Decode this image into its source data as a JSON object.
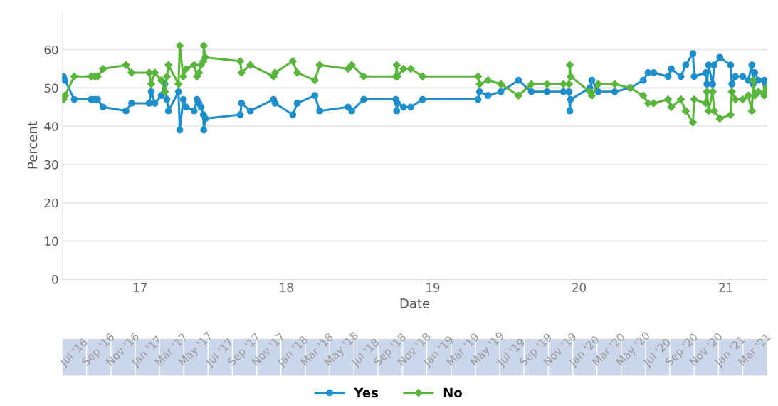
{
  "chart_data": [
    {
      "type": "line",
      "xlabel": "Date",
      "ylabel": "Percent",
      "xlim": [
        "2016-06-21",
        "2021-04-14"
      ],
      "ylim": [
        0,
        70
      ],
      "yticks": [
        0,
        10,
        20,
        30,
        40,
        50,
        60
      ],
      "xticks": [
        {
          "value": "2017-01-01",
          "label": "17"
        },
        {
          "value": "2018-01-01",
          "label": "18"
        },
        {
          "value": "2019-01-01",
          "label": "19"
        },
        {
          "value": "2020-01-01",
          "label": "20"
        },
        {
          "value": "2021-01-01",
          "label": "21"
        }
      ],
      "grid": "y",
      "legend": "bottom",
      "line_style": "solid",
      "x": [
        "2016-06-24",
        "2016-06-28",
        "2016-07-21",
        "2016-09-01",
        "2016-09-10",
        "2016-09-17",
        "2016-10-01",
        "2016-11-27",
        "2016-12-11",
        "2017-01-24",
        "2017-01-29",
        "2017-02-07",
        "2017-02-23",
        "2017-03-04",
        "2017-03-09",
        "2017-03-13",
        "2017-04-07",
        "2017-04-10",
        "2017-04-19",
        "2017-04-26",
        "2017-05-16",
        "2017-05-23",
        "2017-05-28",
        "2017-06-02",
        "2017-06-08",
        "2017-06-09",
        "2017-06-13",
        "2017-09-08",
        "2017-09-11",
        "2017-10-03",
        "2017-11-30",
        "2017-12-04",
        "2018-01-17",
        "2018-01-28",
        "2018-03-13",
        "2018-03-25",
        "2018-06-04",
        "2018-06-13",
        "2018-07-13",
        "2018-10-01",
        "2018-10-03",
        "2018-10-05",
        "2018-10-20",
        "2018-11-07",
        "2018-12-07",
        "2019-04-24",
        "2019-04-28",
        "2019-05-19",
        "2019-06-20",
        "2019-08-03",
        "2019-09-04",
        "2019-10-13",
        "2019-11-23",
        "2019-12-07",
        "2019-12-09",
        "2019-12-11",
        "2020-01-28",
        "2020-02-02",
        "2020-02-18",
        "2020-03-30",
        "2020-05-08",
        "2020-06-09",
        "2020-06-21",
        "2020-07-05",
        "2020-08-10",
        "2020-08-18",
        "2020-09-11",
        "2020-09-23",
        "2020-10-11",
        "2020-10-14",
        "2020-11-12",
        "2020-11-15",
        "2020-11-19",
        "2020-11-29",
        "2020-12-03",
        "2020-12-17",
        "2021-01-13",
        "2021-01-16",
        "2021-01-25",
        "2021-02-12",
        "2021-02-26",
        "2021-03-07",
        "2021-03-10",
        "2021-03-14",
        "2021-03-23",
        "2021-04-07",
        "2021-04-10",
        "2021-04-12"
      ],
      "series": [
        {
          "name": "Yes",
          "color": "#1f8fcb",
          "marker": "circle",
          "values": [
            53,
            52,
            47,
            47,
            47,
            47,
            45,
            44,
            46,
            46,
            49,
            46,
            48,
            51,
            47,
            44,
            49,
            39,
            47,
            45,
            44,
            47,
            46,
            45,
            43,
            39,
            42,
            43,
            46,
            44,
            47,
            46,
            43,
            46,
            48,
            44,
            45,
            44,
            47,
            47,
            44,
            46,
            45,
            45,
            47,
            47,
            49,
            48,
            49,
            52,
            49,
            49,
            49,
            49,
            44,
            47,
            50,
            52,
            49,
            49,
            50,
            52,
            54,
            54,
            53,
            55,
            53,
            56,
            59,
            53,
            54,
            51,
            56,
            51,
            56,
            58,
            56,
            51,
            53,
            53,
            52,
            56,
            51,
            54,
            52,
            52,
            51,
            50
          ]
        },
        {
          "name": "No",
          "color": "#5ab53c",
          "marker": "diamond",
          "values": [
            47,
            48,
            53,
            53,
            53,
            53,
            55,
            56,
            54,
            54,
            51,
            54,
            52,
            49,
            53,
            56,
            51,
            61,
            53,
            55,
            56,
            53,
            54,
            56,
            57,
            61,
            58,
            57,
            54,
            56,
            53,
            54,
            57,
            54,
            52,
            56,
            55,
            56,
            53,
            53,
            56,
            53,
            55,
            55,
            53,
            53,
            51,
            52,
            51,
            48,
            51,
            51,
            51,
            51,
            56,
            53,
            49,
            48,
            51,
            51,
            50,
            48,
            46,
            46,
            47,
            45,
            47,
            44,
            41,
            47,
            46,
            49,
            44,
            49,
            44,
            42,
            43,
            49,
            47,
            47,
            48,
            44,
            52,
            48,
            49,
            48,
            49,
            50
          ]
        }
      ]
    },
    {
      "type": "other",
      "annotations": [
        "Jul '16",
        "Sep '16",
        "Nov '16",
        "Jan '17",
        "Mar '17",
        "May '17",
        "Jul '17",
        "Sep '17",
        "Nov '17",
        "Jan '18",
        "Mar '18",
        "May '18",
        "Jul '18",
        "Sep '18",
        "Nov '18",
        "Jan '19",
        "Mar '19",
        "May '19",
        "Jul '19",
        "Sep '19",
        "Nov '19",
        "Jan '20",
        "Mar '20",
        "May '20",
        "Jul '20",
        "Sep '20",
        "Nov '20",
        "Jan '21",
        "Mar '21"
      ]
    }
  ]
}
